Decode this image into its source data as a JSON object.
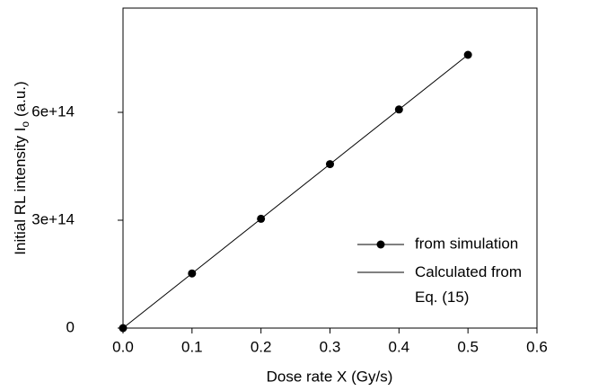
{
  "chart_data": {
    "type": "line",
    "x_label": "Dose rate X (Gy/s)",
    "y_label": "Initial RL intensity I",
    "y_label_sub": "o",
    "y_label_unit": "(a.u.)",
    "series": [
      {
        "name": "from simulation",
        "color": "#000000",
        "marker": true,
        "line": false,
        "x": [
          0,
          0.1,
          0.2,
          0.3,
          0.4,
          0.5
        ],
        "values": [
          0,
          152000000000000,
          304000000000000,
          456000000000000,
          608000000000000,
          760000000000000
        ]
      },
      {
        "name": "Calculated from Eq. (15)",
        "color": "#000000",
        "marker": false,
        "line": true,
        "x": [
          0,
          0.5
        ],
        "values": [
          0,
          760000000000000
        ]
      }
    ],
    "xlim": [
      0,
      0.6
    ],
    "xticks": [
      {
        "value": 0,
        "label": "0.0"
      },
      0.1,
      0.2,
      0.3,
      0.4,
      0.5,
      0.6
    ],
    "ylim": [
      0,
      890000000000000
    ],
    "yticks": [
      0,
      {
        "value": 300000000000000,
        "label": "3e+14"
      },
      {
        "value": 600000000000000,
        "label": "6e+14"
      }
    ],
    "grid": false
  }
}
